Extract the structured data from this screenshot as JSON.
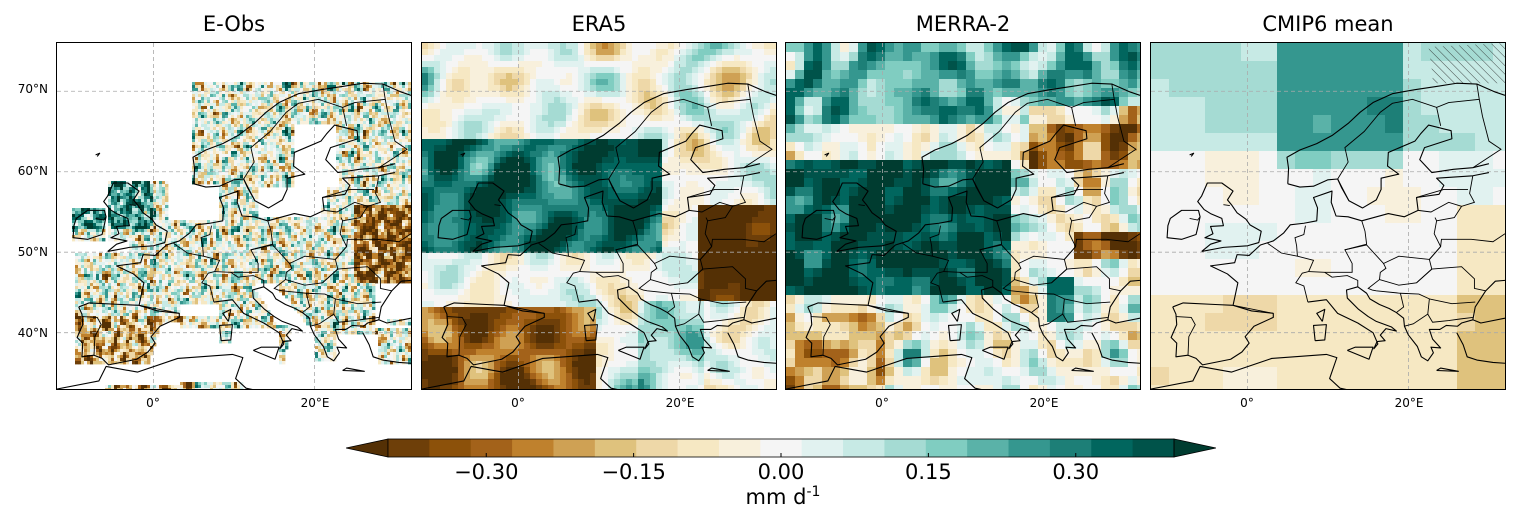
{
  "panels": [
    {
      "title": "E-Obs",
      "style": "eobs"
    },
    {
      "title": "ERA5",
      "style": "era5"
    },
    {
      "title": "MERRA-2",
      "style": "merra"
    },
    {
      "title": "CMIP6 mean",
      "style": "cmip"
    }
  ],
  "axes": {
    "x_ticks": [
      "0°",
      "20°E"
    ],
    "y_ticks": [
      "70°N",
      "60°N",
      "50°N",
      "40°N"
    ],
    "lon_range": [
      -12,
      32
    ],
    "lat_range": [
      33,
      76
    ]
  },
  "colorbar": {
    "ticks": [
      "−0.30",
      "−0.15",
      "0.00",
      "0.15",
      "0.30"
    ],
    "tick_values": [
      -0.3,
      -0.15,
      0.0,
      0.15,
      0.3
    ],
    "range": [
      -0.4,
      0.4
    ],
    "unit_base": "mm d",
    "unit_exp": "-1",
    "colors": [
      "#543005",
      "#6e3f09",
      "#8c510a",
      "#a3621a",
      "#bf812d",
      "#cfa154",
      "#dfc27d",
      "#eed8a8",
      "#f6e8c3",
      "#f8f0dc",
      "#f5f5f5",
      "#e1f2f0",
      "#c7eae5",
      "#a5dbd3",
      "#80cdc1",
      "#5ab2a8",
      "#35978f",
      "#1d7f77",
      "#01665e",
      "#00534a",
      "#003c30"
    ]
  },
  "colors": {
    "brown_dark": "#543005",
    "teal_dark": "#003c30",
    "neutral": "#f5f5f5",
    "grid": "#b0b0b0"
  }
}
